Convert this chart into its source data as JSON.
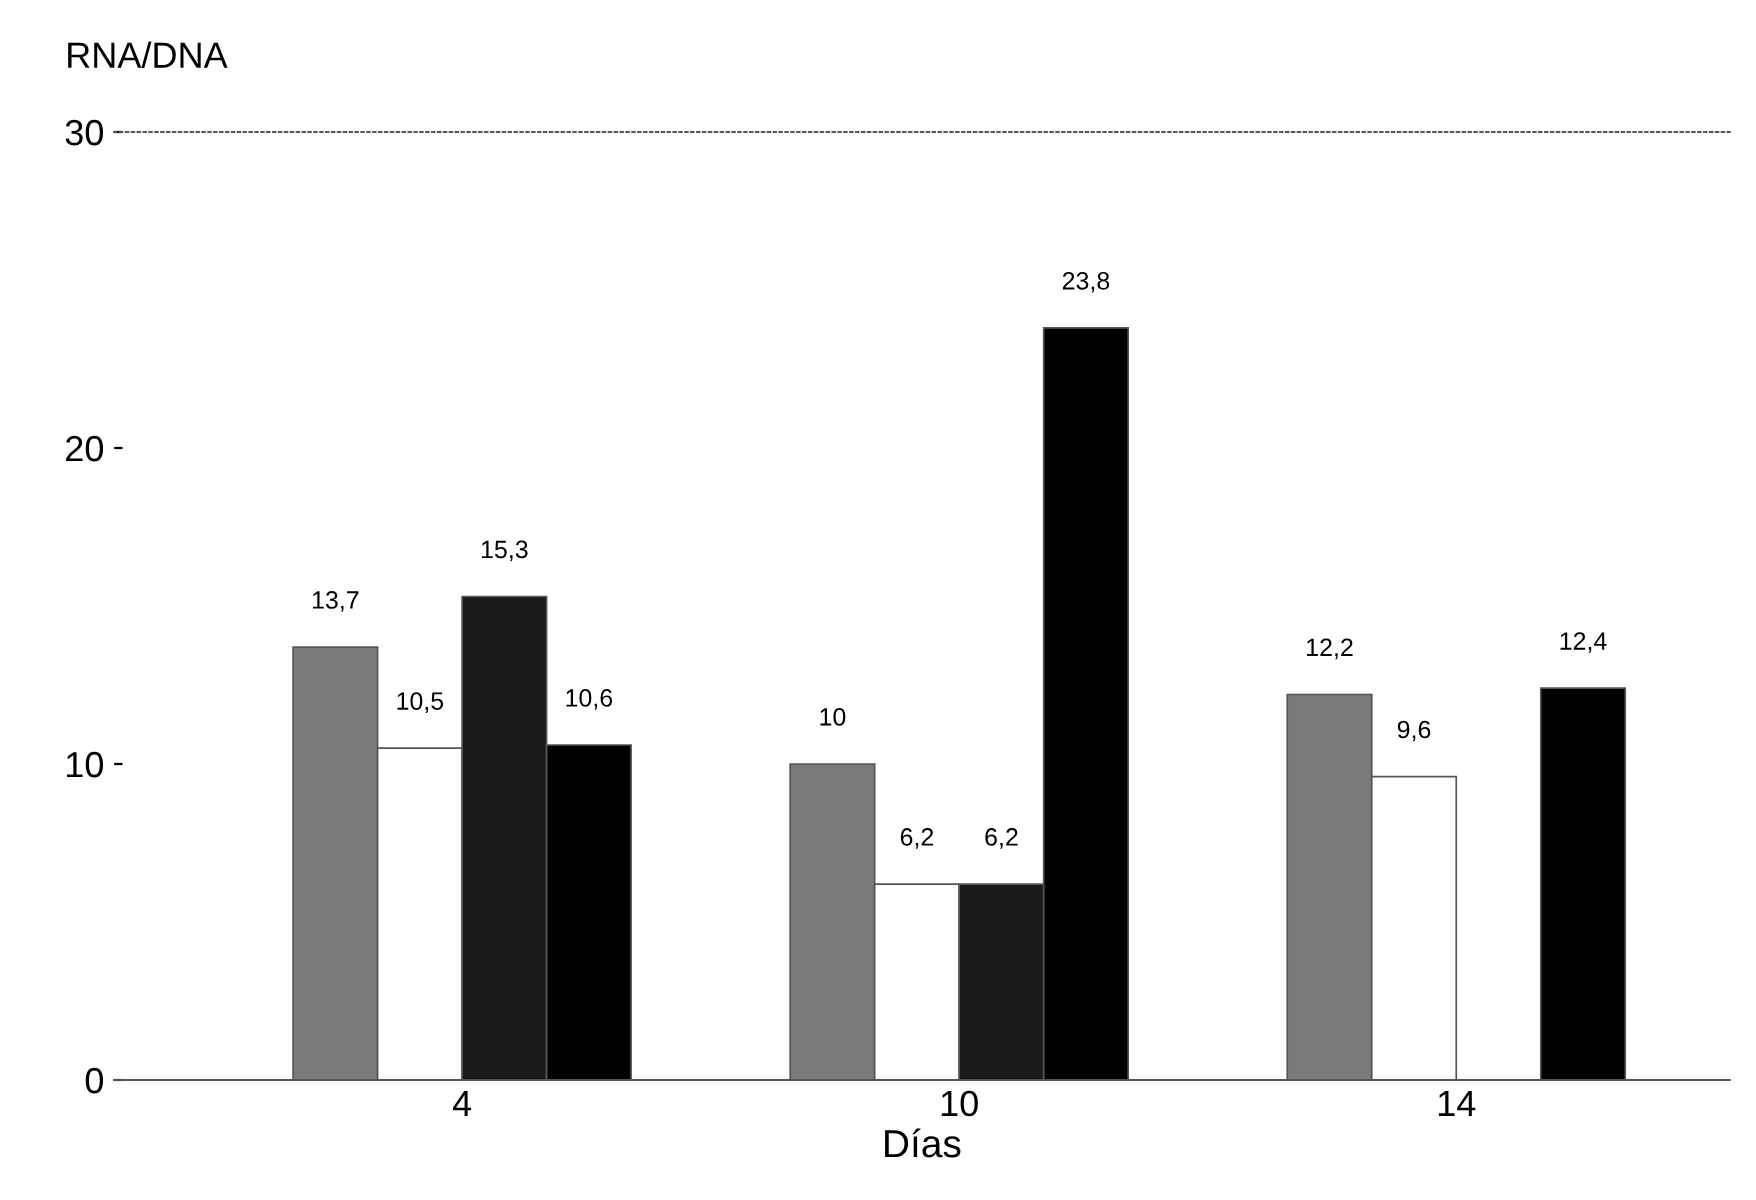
{
  "chart_data": {
    "type": "bar",
    "ylabel": "RNA/DNA",
    "xlabel": "Días",
    "categories": [
      "4",
      "10",
      "14"
    ],
    "series": [
      {
        "color": "#7a7a7a",
        "values": [
          13.7,
          10,
          12.2
        ],
        "value_labels": [
          "13,7",
          "10",
          "12,2"
        ]
      },
      {
        "color": "#ffffff",
        "values": [
          10.5,
          6.2,
          9.6
        ],
        "value_labels": [
          "10,5",
          "6,2",
          "9,6"
        ]
      },
      {
        "color": "#1a1a1a",
        "values": [
          15.3,
          6.2,
          null
        ],
        "value_labels": [
          "15,3",
          "6,2",
          null
        ]
      },
      {
        "color": "#000000",
        "values": [
          10.6,
          23.8,
          12.4
        ],
        "value_labels": [
          "10,6",
          "23,8",
          "12,4"
        ]
      }
    ],
    "ylim": [
      0,
      30
    ],
    "yticks": [
      0,
      10,
      20,
      30
    ],
    "grid": false,
    "legend": false
  }
}
